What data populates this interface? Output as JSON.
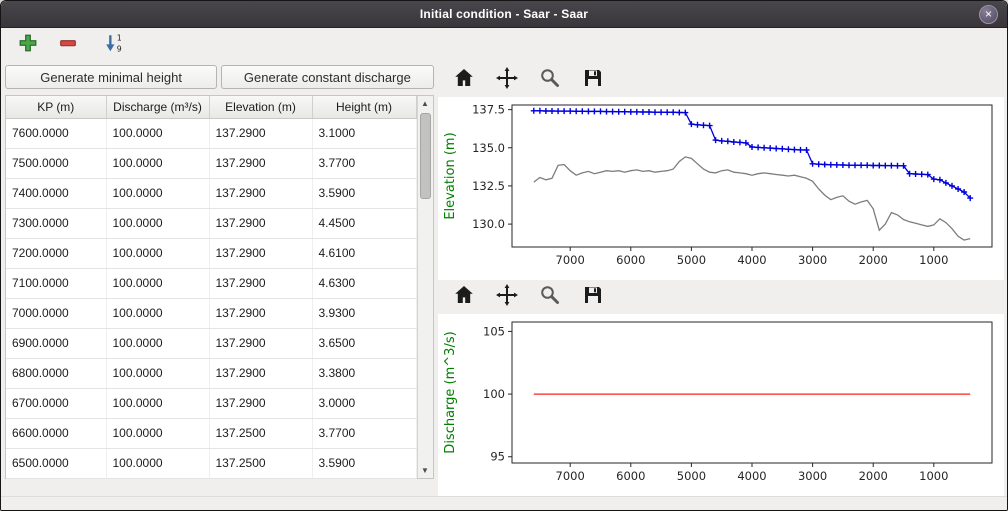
{
  "window": {
    "title": "Initial condition - Saar - Saar",
    "close_glyph": "×"
  },
  "toolbar": {
    "add_icon": "add-row",
    "remove_icon": "remove-row",
    "sort_icon": "sort-descending",
    "sort_top": "1",
    "sort_bottom": "9"
  },
  "left_panel": {
    "buttons": {
      "minimal_height": "Generate minimal height",
      "constant_discharge": "Generate constant discharge"
    },
    "table": {
      "columns": [
        "KP (m)",
        "Discharge (m³/s)",
        "Elevation (m)",
        "Height (m)"
      ],
      "rows": [
        [
          "7600.0000",
          "100.0000",
          "137.2900",
          "3.1000"
        ],
        [
          "7500.0000",
          "100.0000",
          "137.2900",
          "3.7700"
        ],
        [
          "7400.0000",
          "100.0000",
          "137.2900",
          "3.5900"
        ],
        [
          "7300.0000",
          "100.0000",
          "137.2900",
          "4.4500"
        ],
        [
          "7200.0000",
          "100.0000",
          "137.2900",
          "4.6100"
        ],
        [
          "7100.0000",
          "100.0000",
          "137.2900",
          "4.6300"
        ],
        [
          "7000.0000",
          "100.0000",
          "137.2900",
          "3.9300"
        ],
        [
          "6900.0000",
          "100.0000",
          "137.2900",
          "3.6500"
        ],
        [
          "6800.0000",
          "100.0000",
          "137.2900",
          "3.3800"
        ],
        [
          "6700.0000",
          "100.0000",
          "137.2900",
          "3.0000"
        ],
        [
          "6600.0000",
          "100.0000",
          "137.2500",
          "3.7700"
        ],
        [
          "6500.0000",
          "100.0000",
          "137.2500",
          "3.5900"
        ]
      ]
    }
  },
  "plots": {
    "toolbar_icons": [
      "home",
      "pan",
      "zoom",
      "save"
    ]
  },
  "chart_data": [
    {
      "type": "line",
      "ylabel": "Elevation (m)",
      "label_color": "#007f00",
      "xlim": [
        7960,
        40
      ],
      "ylim": [
        128.5,
        137.8
      ],
      "xticks": [
        7000,
        6000,
        5000,
        4000,
        3000,
        2000,
        1000
      ],
      "xtick_labels": [
        "7000",
        "6000",
        "5000",
        "4000",
        "3000",
        "2000",
        "1000"
      ],
      "yticks": [
        130.0,
        132.5,
        135.0,
        137.5
      ],
      "ytick_labels": [
        "130.0",
        "132.5",
        "135.0",
        "137.5"
      ],
      "x": [
        7600,
        7500,
        7400,
        7300,
        7200,
        7100,
        7000,
        6900,
        6800,
        6700,
        6600,
        6500,
        6400,
        6300,
        6200,
        6100,
        6000,
        5900,
        5800,
        5700,
        5600,
        5500,
        5400,
        5300,
        5200,
        5100,
        5000,
        4900,
        4800,
        4700,
        4600,
        4500,
        4400,
        4300,
        4200,
        4100,
        4000,
        3900,
        3800,
        3700,
        3600,
        3500,
        3400,
        3300,
        3200,
        3100,
        3000,
        2900,
        2800,
        2700,
        2600,
        2500,
        2400,
        2300,
        2200,
        2100,
        2000,
        1900,
        1800,
        1700,
        1600,
        1500,
        1400,
        1300,
        1200,
        1100,
        1000,
        900,
        800,
        700,
        600,
        500,
        400
      ],
      "series": [
        {
          "name": "water-elevation",
          "color": "#0000dd",
          "marker": "plus",
          "y": [
            137.42,
            137.42,
            137.41,
            137.41,
            137.4,
            137.4,
            137.4,
            137.39,
            137.39,
            137.38,
            137.38,
            137.38,
            137.37,
            137.37,
            137.36,
            137.36,
            137.35,
            137.35,
            137.34,
            137.34,
            137.33,
            137.33,
            137.32,
            137.32,
            137.31,
            137.3,
            136.55,
            136.5,
            136.48,
            136.45,
            135.5,
            135.45,
            135.42,
            135.38,
            135.35,
            135.32,
            135.05,
            135.02,
            135.0,
            134.98,
            134.95,
            134.93,
            134.9,
            134.88,
            134.86,
            134.85,
            133.95,
            133.92,
            133.9,
            133.89,
            133.88,
            133.87,
            133.86,
            133.86,
            133.85,
            133.85,
            133.84,
            133.84,
            133.83,
            133.83,
            133.82,
            133.82,
            133.3,
            133.28,
            133.26,
            133.24,
            132.95,
            132.9,
            132.7,
            132.5,
            132.3,
            132.1,
            131.7
          ]
        },
        {
          "name": "bed-elevation",
          "color": "#7d7d7d",
          "marker": null,
          "y": [
            132.75,
            133.05,
            132.9,
            133.0,
            133.85,
            133.9,
            133.5,
            133.2,
            133.35,
            133.45,
            133.3,
            133.4,
            133.5,
            133.45,
            133.5,
            133.4,
            133.5,
            133.55,
            133.45,
            133.5,
            133.4,
            133.45,
            133.5,
            133.6,
            134.1,
            134.4,
            134.3,
            133.95,
            133.6,
            133.4,
            133.35,
            133.5,
            133.55,
            133.4,
            133.35,
            133.3,
            133.2,
            133.3,
            133.35,
            133.3,
            133.25,
            133.2,
            133.15,
            133.2,
            133.1,
            133.0,
            132.8,
            132.3,
            131.9,
            131.6,
            131.75,
            131.85,
            131.5,
            131.3,
            131.45,
            131.55,
            131.0,
            129.6,
            130.0,
            130.75,
            130.6,
            130.3,
            130.15,
            130.05,
            129.95,
            129.85,
            129.95,
            130.35,
            130.1,
            129.7,
            129.2,
            128.95,
            129.05
          ]
        }
      ]
    },
    {
      "type": "line",
      "ylabel": "Discharge (m^3/s)",
      "label_color": "#007f00",
      "xlim": [
        7960,
        40
      ],
      "ylim": [
        94.5,
        105.75
      ],
      "xticks": [
        7000,
        6000,
        5000,
        4000,
        3000,
        2000,
        1000
      ],
      "xtick_labels": [
        "7000",
        "6000",
        "5000",
        "4000",
        "3000",
        "2000",
        "1000"
      ],
      "yticks": [
        95,
        100,
        105
      ],
      "ytick_labels": [
        "95",
        "100",
        "105"
      ],
      "x": [
        7600,
        400
      ],
      "series": [
        {
          "name": "discharge",
          "color": "#ff1f1f",
          "marker": null,
          "y": [
            100,
            100
          ]
        }
      ]
    }
  ]
}
